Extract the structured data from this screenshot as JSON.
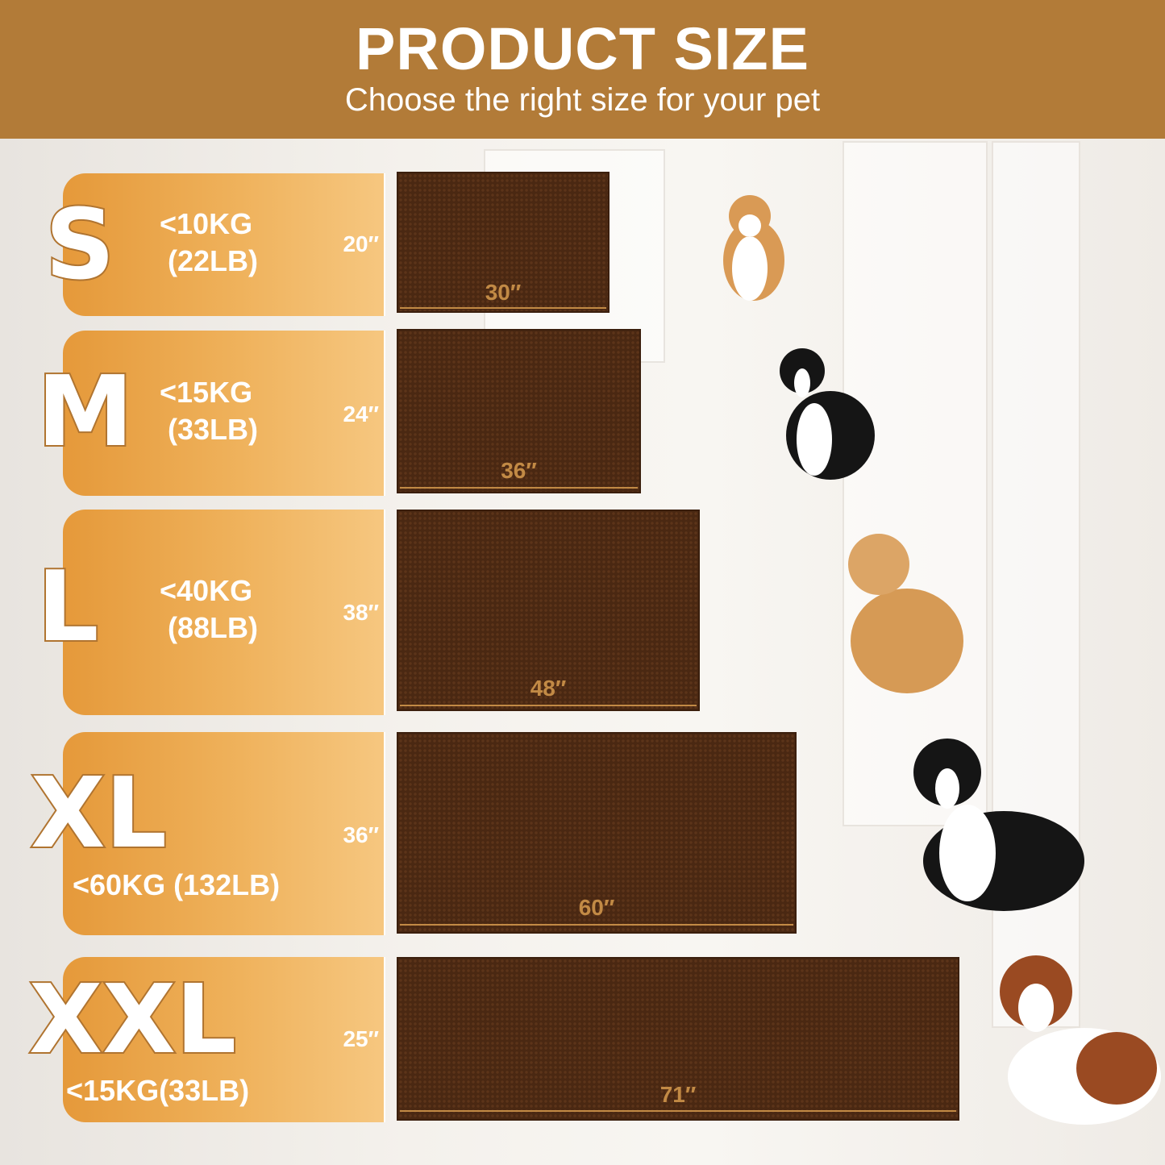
{
  "header": {
    "title": "PRODUCT SIZE",
    "subtitle": "Choose the right size for your pet"
  },
  "colors": {
    "header": "#b27b38",
    "panel": "#efb25c",
    "mat": "#4a2812"
  },
  "sizes": [
    {
      "size": "S",
      "weight_kg": "<10KG",
      "weight_lb": "(22LB)",
      "height": "20″",
      "width": "30″",
      "dog": "corgi"
    },
    {
      "size": "M",
      "weight_kg": "<15KG",
      "weight_lb": "(33LB)",
      "height": "24″",
      "width": "36″",
      "dog": "border-collie"
    },
    {
      "size": "L",
      "weight_kg": "<40KG",
      "weight_lb": "(88LB)",
      "height": "38″",
      "width": "48″",
      "dog": "golden-retriever"
    },
    {
      "size": "XL",
      "weight": "<60KG (132LB)",
      "height": "36″",
      "width": "60″",
      "dog": "bernese-mountain-dog"
    },
    {
      "size": "XXL",
      "weight": "<15KG(33LB)",
      "height": "25″",
      "width": "71″",
      "dog": "saint-bernard"
    }
  ]
}
